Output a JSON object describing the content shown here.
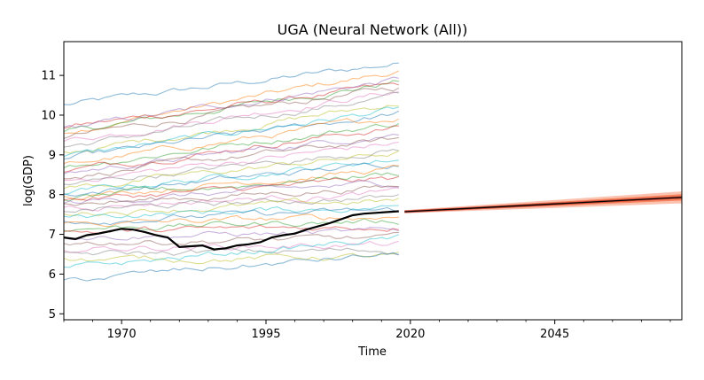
{
  "chart_data": {
    "type": "line",
    "title": "UGA (Neural Network (All))",
    "xlabel": "Time",
    "ylabel": "log(GDP)",
    "xlim": [
      1960,
      2067
    ],
    "ylim": [
      4.85,
      11.85
    ],
    "x_ticks": [
      1970,
      1995,
      2020,
      2045
    ],
    "x_tick_labels": [
      "1970",
      "1995",
      "2020",
      "2045"
    ],
    "y_ticks": [
      5,
      6,
      7,
      8,
      9,
      10,
      11
    ],
    "y_tick_labels": [
      "5",
      "6",
      "7",
      "8",
      "9",
      "10",
      "11"
    ],
    "grid": false,
    "legend": "none",
    "history_x_range": [
      1960,
      2018
    ],
    "history_series_start_values": [
      10.25,
      9.6,
      9.55,
      9.7,
      9.65,
      9.45,
      9.35,
      9.2,
      9.05,
      8.95,
      8.9,
      8.75,
      8.7,
      8.6,
      8.55,
      8.45,
      8.35,
      8.25,
      8.15,
      8.05,
      8.0,
      7.95,
      7.9,
      7.85,
      7.8,
      7.75,
      7.7,
      7.62,
      7.55,
      7.45,
      7.35,
      7.25,
      7.15,
      7.05,
      6.95,
      6.8,
      6.65,
      6.5,
      6.35,
      6.15,
      5.85
    ],
    "history_series_end_values": [
      11.3,
      11.1,
      10.85,
      10.75,
      10.9,
      10.7,
      10.6,
      10.5,
      10.3,
      10.15,
      10.05,
      9.95,
      9.8,
      9.7,
      9.55,
      9.4,
      9.3,
      9.15,
      9.05,
      8.9,
      8.8,
      8.65,
      8.55,
      8.4,
      8.3,
      8.2,
      8.05,
      7.95,
      7.85,
      7.7,
      7.6,
      7.45,
      7.35,
      7.2,
      7.05,
      6.9,
      6.75,
      6.6,
      6.45,
      6.9,
      6.5
    ],
    "highlight_series": {
      "name": "UGA",
      "x": [
        1960,
        1962,
        1964,
        1966,
        1968,
        1970,
        1972,
        1974,
        1976,
        1978,
        1980,
        1982,
        1984,
        1986,
        1988,
        1990,
        1992,
        1994,
        1996,
        1998,
        2000,
        2002,
        2004,
        2006,
        2008,
        2010,
        2012,
        2014,
        2016,
        2018
      ],
      "values": [
        6.92,
        6.88,
        6.98,
        7.02,
        7.08,
        7.14,
        7.12,
        7.06,
        6.98,
        6.92,
        6.68,
        6.7,
        6.72,
        6.62,
        6.65,
        6.72,
        6.75,
        6.8,
        6.92,
        6.98,
        7.02,
        7.12,
        7.2,
        7.28,
        7.38,
        7.48,
        7.52,
        7.54,
        7.56,
        7.58
      ]
    },
    "forecast": {
      "x": [
        2019,
        2067
      ],
      "median": [
        7.57,
        7.93
      ],
      "band_inner": [
        [
          7.55,
          7.59
        ],
        [
          7.85,
          8.01
        ]
      ],
      "band_outer": [
        [
          7.53,
          7.61
        ],
        [
          7.78,
          8.08
        ]
      ],
      "line_color": "#000000",
      "band_color": "#f4511e"
    },
    "colors": [
      "#1f77b4",
      "#ff7f0e",
      "#2ca02c",
      "#d62728",
      "#9467bd",
      "#8c564b",
      "#e377c2",
      "#7f7f7f",
      "#bcbd22",
      "#17becf"
    ]
  }
}
